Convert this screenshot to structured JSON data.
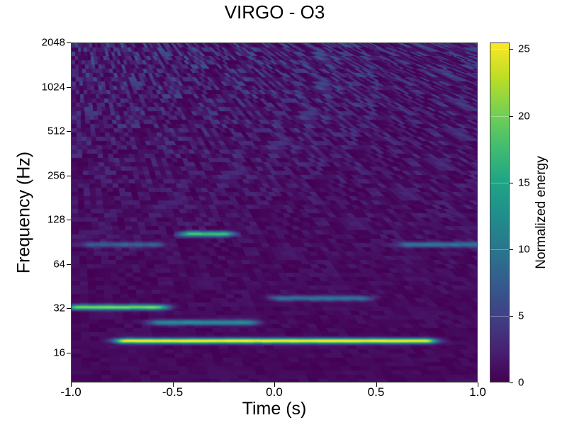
{
  "chart_data": {
    "type": "heatmap",
    "title": "VIRGO - O3",
    "xlabel": "Time (s)",
    "ylabel": "Frequency (Hz)",
    "colorbar_label": "Normalized energy",
    "colormap": "viridis",
    "x_range": [
      -1.0,
      1.0
    ],
    "x_ticks": [
      "-1.0",
      "-0.5",
      "0.0",
      "0.5",
      "1.0"
    ],
    "x_tick_values": [
      -1.0,
      -0.5,
      0.0,
      0.5,
      1.0
    ],
    "y_scale": "log2",
    "y_range": [
      10,
      2048
    ],
    "y_ticks": [
      "16",
      "32",
      "64",
      "128",
      "256",
      "512",
      "1024",
      "2048"
    ],
    "y_tick_values": [
      16,
      32,
      64,
      128,
      256,
      512,
      1024,
      2048
    ],
    "color_range": [
      0,
      25.5
    ],
    "color_ticks": [
      "0",
      "5",
      "10",
      "15",
      "20",
      "25"
    ],
    "color_tick_values": [
      0,
      5,
      10,
      15,
      20,
      25
    ],
    "features": [
      {
        "t_start": -1.0,
        "t_end": 1.0,
        "freq": 19.5,
        "energy": 25
      },
      {
        "t_start": -1.0,
        "t_end": -0.55,
        "freq": 33,
        "energy": 20
      },
      {
        "t_start": -0.6,
        "t_end": -0.1,
        "freq": 26,
        "energy": 12
      },
      {
        "t_start": -0.4,
        "t_end": -0.27,
        "freq": 104,
        "energy": 17
      },
      {
        "t_start": 0.0,
        "t_end": 0.45,
        "freq": 38,
        "energy": 9
      },
      {
        "t_start": 0.65,
        "t_end": 1.0,
        "freq": 88,
        "energy": 9
      },
      {
        "t_start": -0.9,
        "t_end": -0.6,
        "freq": 88,
        "energy": 7
      }
    ]
  }
}
